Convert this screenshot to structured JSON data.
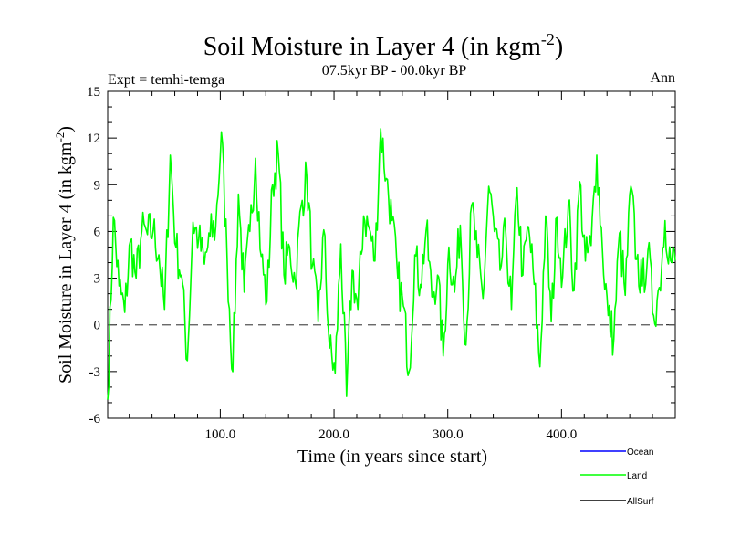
{
  "chart_data": {
    "type": "line",
    "title": "Soil Moisture in Layer 4 (in kgm",
    "title_sup": "-2",
    "title_end": ")",
    "subtitle": "07.5kyr BP - 00.0kyr BP",
    "left_label": "Expt = temhi-temga",
    "right_label": "Ann",
    "xlabel": "Time (in years since start)",
    "ylabel": "Soil Moisture in Layer 4 (in kgm",
    "ylabel_sup": "-2",
    "ylabel_end": ")",
    "xlim": [
      1,
      500
    ],
    "ylim": [
      -6,
      15
    ],
    "xticks": [
      100,
      200,
      300,
      400
    ],
    "xtick_labels": [
      "100.0",
      "200.0",
      "300.0",
      "400.0"
    ],
    "yticks": [
      -6,
      -3,
      0,
      3,
      6,
      9,
      12,
      15
    ],
    "ytick_labels": [
      "-6",
      "-3",
      "0",
      "3",
      "6",
      "9",
      "12",
      "15"
    ],
    "zero_line": 0,
    "legend": [
      {
        "name": "Ocean",
        "color": "#0000ff"
      },
      {
        "name": "Land",
        "color": "#00ff00"
      },
      {
        "name": "AllSurf",
        "color": "#000000"
      }
    ],
    "series": [
      {
        "name": "Land",
        "color": "#00ff00",
        "x_start": 1,
        "x_step": 5,
        "values": [
          -4.8,
          6.9,
          2.5,
          0.8,
          5.4,
          3.0,
          6.0,
          5.8,
          6.1,
          4.5,
          1.0,
          10.9,
          5.0,
          3.2,
          -2.3,
          6.6,
          5.5,
          3.9,
          5.7,
          6.3,
          12.4,
          4.2,
          -3.0,
          8.4,
          2.1,
          6.0,
          10.7,
          4.4,
          1.5,
          9.0,
          11.0,
          3.2,
          5.0,
          2.7,
          7.6,
          9.6,
          3.8,
          0.2,
          6.1,
          -1.5,
          -3.1,
          5.2,
          -4.6,
          3.5,
          1.0,
          7.0,
          6.2,
          4.1,
          12.6,
          9.4,
          6.7,
          3.0,
          1.2,
          -3.0,
          4.5,
          2.6,
          6.1,
          1.8,
          3.2,
          -2.0,
          5.0,
          2.1,
          6.4,
          -1.3,
          7.7,
          4.3,
          1.7,
          8.9,
          6.0,
          3.5,
          5.9,
          1.0,
          8.8,
          3.2,
          6.3,
          2.6,
          -2.7,
          7.0,
          0.2,
          6.9,
          3.1,
          7.8,
          2.2,
          9.2,
          4.1,
          5.1,
          10.9,
          4.8,
          0.6,
          -0.9,
          5.9,
          1.9,
          8.9,
          4.2,
          2.5,
          4.8,
          0.6,
          2.4,
          6.7,
          4.1
        ]
      }
    ]
  }
}
